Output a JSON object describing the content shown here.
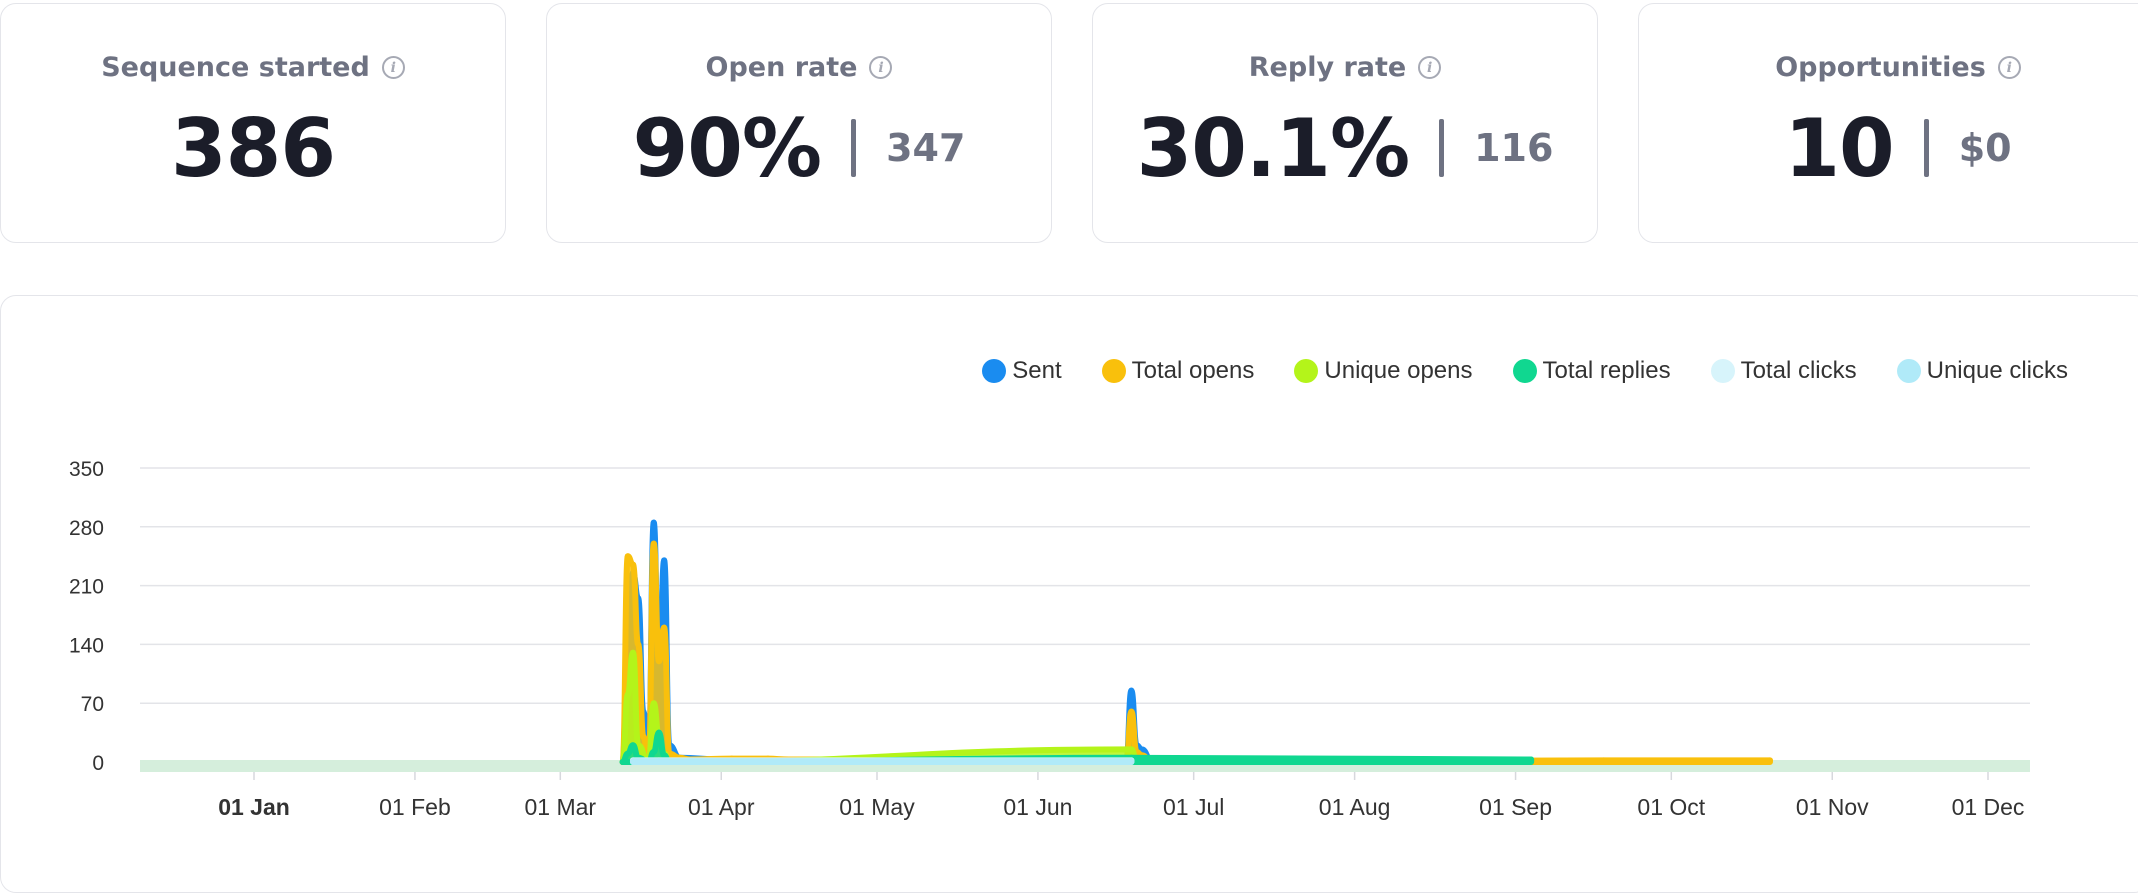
{
  "cards": [
    {
      "title": "Sequence started",
      "value": "386",
      "secondary": ""
    },
    {
      "title": "Open rate",
      "value": "90%",
      "secondary": "347"
    },
    {
      "title": "Reply rate",
      "value": "30.1%",
      "secondary": "116"
    },
    {
      "title": "Opportunities",
      "value": "10",
      "secondary": "$0"
    }
  ],
  "info_icon": {
    "icon": "info-icon",
    "glyph": "i"
  },
  "chart_data": {
    "type": "area",
    "x_axis": {
      "ticks": [
        "01 Jan",
        "01 Feb",
        "01 Mar",
        "01 Apr",
        "01 May",
        "01 Jun",
        "01 Jul",
        "01 Aug",
        "01 Sep",
        "01 Oct",
        "01 Nov",
        "01 Dec"
      ],
      "bold_tick": "01 Jan"
    },
    "y_axis": {
      "ticks": [
        0,
        70,
        140,
        210,
        280,
        350
      ],
      "ylim": [
        0,
        350
      ]
    },
    "grid": true,
    "legend_position": "top-right",
    "series": [
      {
        "name": "Sent",
        "color": "#1a8cf0",
        "points": [
          [
            "2023-03-13",
            0
          ],
          [
            "2023-03-14",
            160
          ],
          [
            "2023-03-15",
            225
          ],
          [
            "2023-03-16",
            195
          ],
          [
            "2023-03-17",
            60
          ],
          [
            "2023-03-18",
            0
          ],
          [
            "2023-03-19",
            285
          ],
          [
            "2023-03-20",
            80
          ],
          [
            "2023-03-21",
            240
          ],
          [
            "2023-03-22",
            20
          ],
          [
            "2023-03-24",
            5
          ],
          [
            "2023-04-01",
            3
          ],
          [
            "2023-06-18",
            0
          ],
          [
            "2023-06-19",
            85
          ],
          [
            "2023-06-20",
            20
          ],
          [
            "2023-06-21",
            15
          ],
          [
            "2023-06-23",
            0
          ]
        ]
      },
      {
        "name": "Total opens",
        "color": "#f9c00c",
        "points": [
          [
            "2023-03-13",
            0
          ],
          [
            "2023-03-14",
            245
          ],
          [
            "2023-03-15",
            235
          ],
          [
            "2023-03-16",
            140
          ],
          [
            "2023-03-17",
            30
          ],
          [
            "2023-03-18",
            0
          ],
          [
            "2023-03-19",
            260
          ],
          [
            "2023-03-20",
            120
          ],
          [
            "2023-03-21",
            160
          ],
          [
            "2023-03-22",
            10
          ],
          [
            "2023-03-24",
            5
          ],
          [
            "2023-03-26",
            3
          ],
          [
            "2023-04-03",
            4
          ],
          [
            "2023-04-10",
            4
          ],
          [
            "2023-04-14",
            3
          ],
          [
            "2023-06-01",
            3
          ],
          [
            "2023-06-18",
            0
          ],
          [
            "2023-06-19",
            60
          ],
          [
            "2023-06-20",
            12
          ],
          [
            "2023-06-21",
            8
          ],
          [
            "2023-06-23",
            0
          ],
          [
            "2023-09-18",
            2
          ],
          [
            "2023-10-20",
            2
          ]
        ]
      },
      {
        "name": "Unique opens",
        "color": "#b4f41a",
        "points": [
          [
            "2023-03-13",
            0
          ],
          [
            "2023-03-14",
            80
          ],
          [
            "2023-03-15",
            130
          ],
          [
            "2023-03-16",
            20
          ],
          [
            "2023-03-18",
            0
          ],
          [
            "2023-03-19",
            70
          ],
          [
            "2023-03-20",
            30
          ],
          [
            "2023-03-21",
            10
          ],
          [
            "2023-03-22",
            0
          ],
          [
            "2023-06-19",
            15
          ],
          [
            "2023-06-20",
            2
          ]
        ]
      },
      {
        "name": "Total replies",
        "color": "#10d790",
        "points": [
          [
            "2023-03-13",
            0
          ],
          [
            "2023-03-14",
            10
          ],
          [
            "2023-03-15",
            20
          ],
          [
            "2023-03-16",
            5
          ],
          [
            "2023-03-18",
            0
          ],
          [
            "2023-03-19",
            12
          ],
          [
            "2023-03-20",
            35
          ],
          [
            "2023-03-21",
            8
          ],
          [
            "2023-03-22",
            0
          ],
          [
            "2023-06-19",
            5
          ],
          [
            "2023-09-04",
            3
          ]
        ]
      },
      {
        "name": "Total clicks",
        "color": "#d7f4fb",
        "points": [
          [
            "2023-03-15",
            2
          ],
          [
            "2023-03-20",
            2
          ],
          [
            "2023-06-19",
            2
          ]
        ]
      },
      {
        "name": "Unique clicks",
        "color": "#b0eaf8",
        "points": [
          [
            "2023-03-15",
            1
          ],
          [
            "2023-03-20",
            1
          ],
          [
            "2023-06-19",
            1
          ]
        ]
      }
    ]
  }
}
